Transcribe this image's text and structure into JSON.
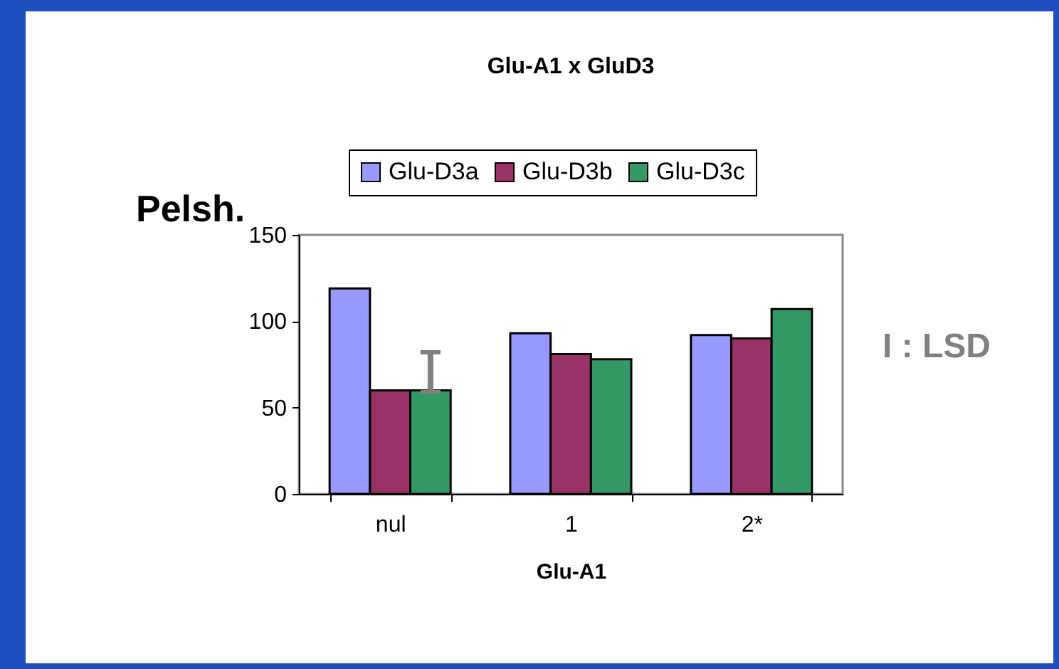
{
  "chart_data": {
    "type": "bar",
    "title": "Glu-A1 x GluD3",
    "xlabel": "Glu-A1",
    "ylabel": "Pelsh.",
    "categories": [
      "nul",
      "1",
      "2*"
    ],
    "series": [
      {
        "name": "Glu-D3a",
        "color": "#9999ff",
        "values": [
          119,
          93,
          92
        ]
      },
      {
        "name": "Glu-D3b",
        "color": "#993366",
        "values": [
          60,
          81,
          90
        ]
      },
      {
        "name": "Glu-D3c",
        "color": "#339966",
        "values": [
          60,
          78,
          107
        ],
        "errors": [
          [
            59,
            82
          ],
          null,
          null
        ]
      }
    ],
    "ylim": [
      0,
      150
    ],
    "yticks": [
      0,
      50,
      100,
      150
    ],
    "legend": "top",
    "grid": false,
    "annotations": [
      "I : LSD"
    ]
  }
}
